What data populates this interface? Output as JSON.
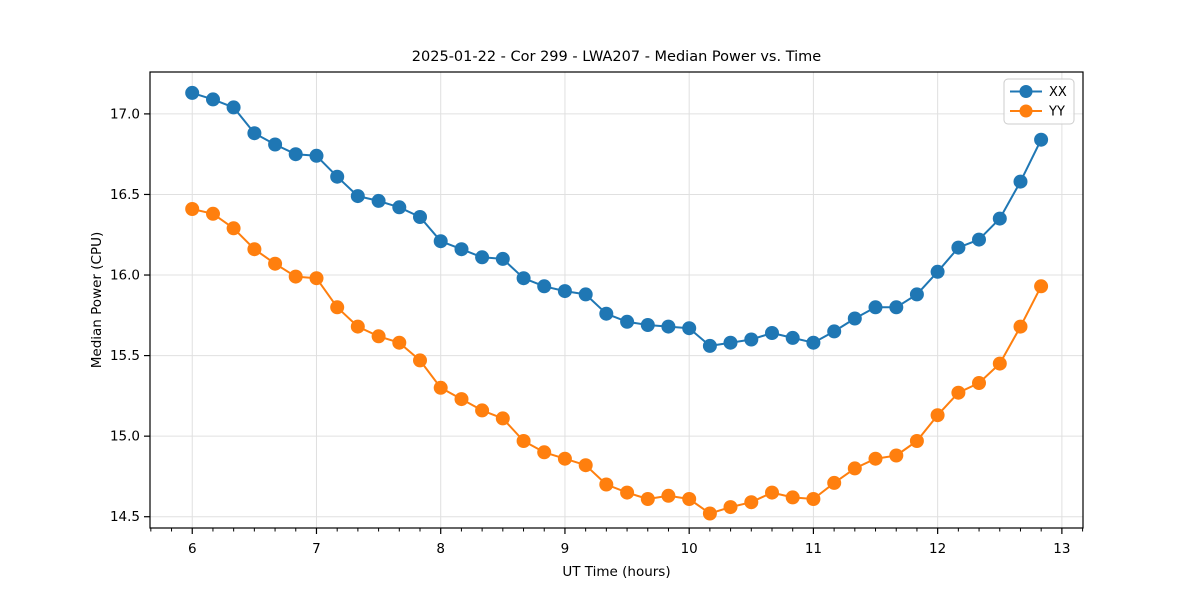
{
  "figure": {
    "title": "2025-01-22 - Cor 299 - LWA207 - Median Power vs. Time",
    "xlabel": "UT Time (hours)",
    "ylabel": "Median Power (CPU)"
  },
  "chart_data": {
    "type": "line",
    "title": "2025-01-22 - Cor 299 - LWA207 - Median Power vs. Time",
    "xlabel": "UT Time (hours)",
    "ylabel": "Median Power (CPU)",
    "xlim": [
      5.66,
      13.17
    ],
    "ylim": [
      14.43,
      17.26
    ],
    "x_major_ticks": [
      6,
      7,
      8,
      9,
      10,
      11,
      12,
      13
    ],
    "x_tick_labels": [
      "6",
      "7",
      "8",
      "9",
      "10",
      "11",
      "12",
      "13"
    ],
    "x_minor_tick_step": 0.16667,
    "y_major_ticks": [
      14.5,
      15.0,
      15.5,
      16.0,
      16.5,
      17.0
    ],
    "y_tick_labels": [
      "14.5",
      "15.0",
      "15.5",
      "16.0",
      "16.5",
      "17.0"
    ],
    "grid": true,
    "legend_position": "upper right",
    "marker": "circle",
    "x": [
      6.0,
      6.167,
      6.333,
      6.5,
      6.667,
      6.833,
      7.0,
      7.167,
      7.333,
      7.5,
      7.667,
      7.833,
      8.0,
      8.167,
      8.333,
      8.5,
      8.667,
      8.833,
      9.0,
      9.167,
      9.333,
      9.5,
      9.667,
      9.833,
      10.0,
      10.167,
      10.333,
      10.5,
      10.667,
      10.833,
      11.0,
      11.167,
      11.333,
      11.5,
      11.667,
      11.833,
      12.0,
      12.167,
      12.333,
      12.5,
      12.667,
      12.833
    ],
    "series": [
      {
        "name": "XX",
        "color": "#1f77b4",
        "values": [
          17.13,
          17.09,
          17.04,
          16.88,
          16.81,
          16.75,
          16.74,
          16.61,
          16.49,
          16.46,
          16.42,
          16.36,
          16.21,
          16.16,
          16.11,
          16.1,
          15.98,
          15.93,
          15.9,
          15.88,
          15.76,
          15.71,
          15.69,
          15.68,
          15.67,
          15.56,
          15.58,
          15.6,
          15.64,
          15.61,
          15.58,
          15.65,
          15.73,
          15.8,
          15.8,
          15.88,
          16.02,
          16.17,
          16.22,
          16.35,
          16.58,
          16.84
        ]
      },
      {
        "name": "YY",
        "color": "#ff7f0e",
        "values": [
          16.41,
          16.38,
          16.29,
          16.16,
          16.07,
          15.99,
          15.98,
          15.8,
          15.68,
          15.62,
          15.58,
          15.47,
          15.3,
          15.23,
          15.16,
          15.11,
          14.97,
          14.9,
          14.86,
          14.82,
          14.7,
          14.65,
          14.61,
          14.63,
          14.61,
          14.52,
          14.56,
          14.59,
          14.65,
          14.62,
          14.61,
          14.71,
          14.8,
          14.86,
          14.88,
          14.97,
          15.13,
          15.27,
          15.33,
          15.45,
          15.68,
          15.93
        ]
      }
    ]
  }
}
